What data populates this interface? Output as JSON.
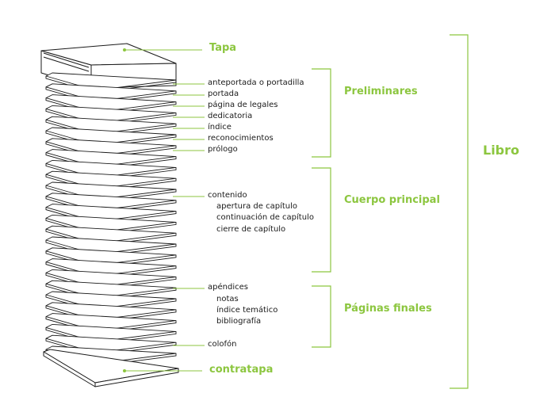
{
  "accent_color": "#8cc63f",
  "line_color": "#1a1a1a",
  "cover": {
    "label": "Tapa"
  },
  "back_cover": {
    "label": "contratapa"
  },
  "book": {
    "label": "Libro"
  },
  "preliminares": {
    "title": "Preliminares",
    "items": [
      "anteportada o portadilla",
      "portada",
      "página de legales",
      "dedicatoria",
      "índice",
      "reconocimientos",
      "prólogo"
    ]
  },
  "cuerpo": {
    "title": "Cuerpo principal",
    "main": "contenido",
    "subitems": [
      "apertura de capítulo",
      "continuación de capítulo",
      "cierre de capítulo"
    ]
  },
  "finales": {
    "title": "Páginas finales",
    "main": "apéndices",
    "subitems": [
      "notas",
      "índice temático",
      "bibliografía"
    ],
    "colofon": "colofón"
  }
}
